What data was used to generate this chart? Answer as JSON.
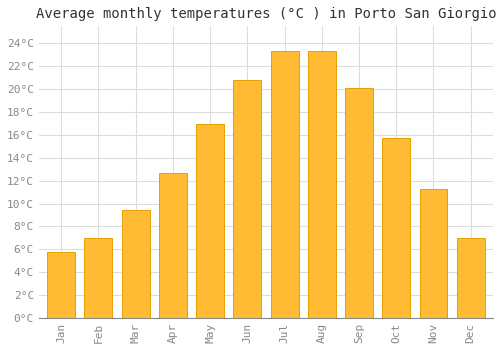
{
  "title": "Average monthly temperatures (°C ) in Porto San Giorgio",
  "months": [
    "Jan",
    "Feb",
    "Mar",
    "Apr",
    "May",
    "Jun",
    "Jul",
    "Aug",
    "Sep",
    "Oct",
    "Nov",
    "Dec"
  ],
  "values": [
    5.8,
    7.0,
    9.4,
    12.7,
    17.0,
    20.8,
    23.3,
    23.3,
    20.1,
    15.7,
    11.3,
    7.0
  ],
  "bar_color": "#FFBB33",
  "bar_edge_color": "#E8A000",
  "background_color": "#FFFFFF",
  "grid_color": "#DDDDDD",
  "ytick_labels": [
    "0°C",
    "2°C",
    "4°C",
    "6°C",
    "8°C",
    "10°C",
    "12°C",
    "14°C",
    "16°C",
    "18°C",
    "20°C",
    "22°C",
    "24°C"
  ],
  "ytick_values": [
    0,
    2,
    4,
    6,
    8,
    10,
    12,
    14,
    16,
    18,
    20,
    22,
    24
  ],
  "ylim": [
    0,
    25.5
  ],
  "title_fontsize": 10,
  "tick_fontsize": 8,
  "tick_color": "#888888",
  "font_family": "monospace"
}
